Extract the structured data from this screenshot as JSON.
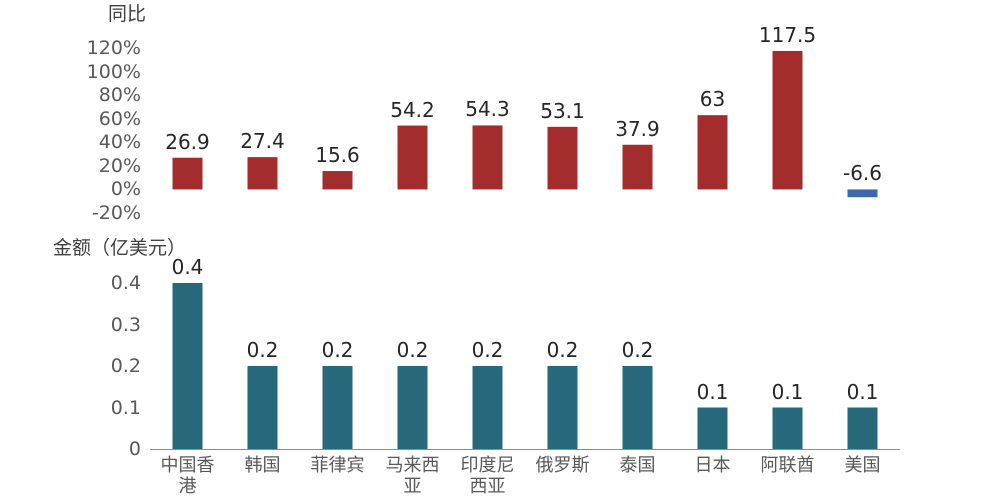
{
  "chart_data": {
    "type": "bar",
    "categories": [
      "中国香港",
      "韩国",
      "菲律宾",
      "马来西亚",
      "印度尼西亚",
      "俄罗斯",
      "泰国",
      "日本",
      "阿联酋",
      "美国"
    ],
    "panels": [
      {
        "ylabel": "同比",
        "values": [
          26.9,
          27.4,
          15.6,
          54.2,
          54.3,
          53.1,
          37.9,
          63,
          117.5,
          -6.6
        ],
        "ylim": [
          -20,
          120
        ],
        "yticks": [
          120,
          100,
          80,
          60,
          40,
          20,
          0,
          -20
        ],
        "ytick_labels": [
          "120%",
          "100%",
          "80%",
          "60%",
          "40%",
          "20%",
          "0%",
          "-20%"
        ],
        "color": "#a32d2d",
        "negative_color": "#3d68aa",
        "grid": false
      },
      {
        "ylabel": "金额（亿美元）",
        "values": [
          0.4,
          0.2,
          0.2,
          0.2,
          0.2,
          0.2,
          0.2,
          0.1,
          0.1,
          0.1
        ],
        "ylim": [
          0,
          0.4
        ],
        "yticks": [
          0.4,
          0.3,
          0.2,
          0.1,
          0
        ],
        "ytick_labels": [
          "0.4",
          "0.3",
          "0.2",
          "0.1",
          "0"
        ],
        "color": "#27697b",
        "grid": false
      }
    ]
  }
}
